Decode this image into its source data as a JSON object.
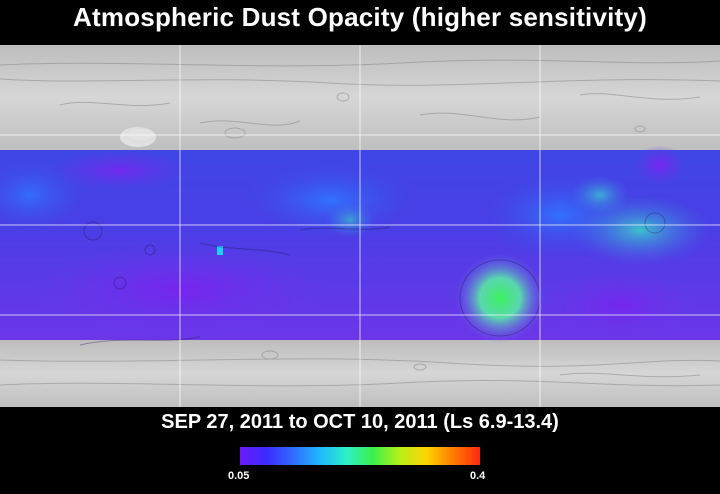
{
  "title": "Atmospheric Dust Opacity (higher sensitivity)",
  "date_range": "SEP 27, 2011 to OCT 10, 2011 (Ls 6.9-13.4)",
  "colorbar": {
    "min_label": "0.05",
    "max_label": "0.4",
    "colors": [
      "#6a1aff",
      "#3a2cff",
      "#2f6cff",
      "#1fb8ff",
      "#2cf0c8",
      "#3cf04a",
      "#b8f018",
      "#ffd400",
      "#ff7a00",
      "#ff2a10"
    ]
  },
  "colors": {
    "terrain": "#c9c9c9",
    "background": "#000000",
    "low_opacity": "#6a30e8",
    "mid_opacity": "#3ad8c8",
    "high_opacity": "#38e870"
  }
}
